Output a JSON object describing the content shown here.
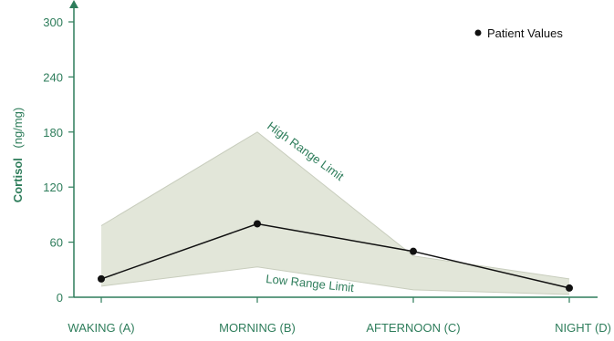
{
  "chart_data": {
    "type": "line",
    "categories": [
      "WAKING (A)",
      "MORNING (B)",
      "AFTERNOON (C)",
      "NIGHT (D)"
    ],
    "series": [
      {
        "name": "Patient Values",
        "values": [
          20,
          80,
          50,
          10
        ]
      }
    ],
    "reference_range": {
      "high": [
        78,
        180,
        45,
        20
      ],
      "low": [
        12,
        33,
        8,
        3
      ],
      "high_label": "High Range Limit",
      "low_label": "Low Range Limit"
    },
    "ylabel_bold": "Cortisol",
    "ylabel_unit": "(ng/mg)",
    "ylim": [
      0,
      300
    ],
    "yticks": [
      0,
      60,
      120,
      180,
      240,
      300
    ],
    "grid": false,
    "legend_position": "top-right"
  },
  "colors": {
    "accent": "#2e7d5b",
    "band_fill": "#e2e6d9",
    "band_edge": "#c8cdbd",
    "line": "#111111",
    "axis": "#2e7d5b"
  }
}
